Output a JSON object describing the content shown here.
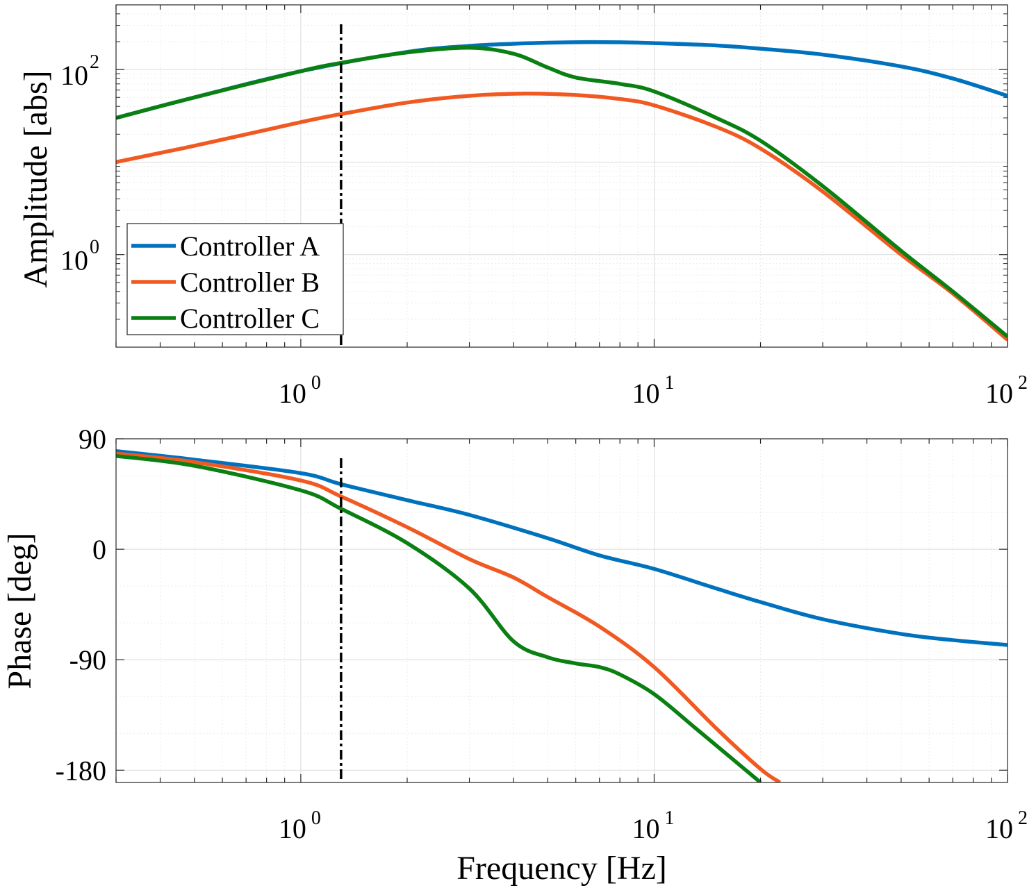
{
  "chart_data": [
    {
      "type": "line",
      "id": "amplitude",
      "xscale": "log",
      "yscale": "log",
      "xlim": [
        0.3,
        100
      ],
      "ylim": [
        0.1,
        500
      ],
      "ylabel": "Amplitude [abs]",
      "xticks": [
        {
          "v": 1,
          "label": "10",
          "exp": "0"
        },
        {
          "v": 10,
          "label": "10",
          "exp": "1"
        },
        {
          "v": 100,
          "label": "10",
          "exp": "2"
        }
      ],
      "yticks": [
        {
          "v": 1,
          "label": "10",
          "exp": "0"
        },
        {
          "v": 100,
          "label": "10",
          "exp": "2"
        }
      ],
      "vline_x": 1.3,
      "grid": true,
      "legend": {
        "position": "bottom-left"
      },
      "series": [
        {
          "name": "Controller A",
          "color": "#0072BD",
          "x": [
            0.3,
            0.5,
            1,
            2,
            3,
            4,
            5,
            6.5,
            8,
            10,
            15,
            20,
            30,
            50,
            70,
            100
          ],
          "y": [
            30,
            50,
            96,
            155,
            180,
            190,
            195,
            198,
            197,
            193,
            182,
            168,
            145,
            108,
            80,
            52
          ]
        },
        {
          "name": "Controller B",
          "color": "#F05A22",
          "x": [
            0.3,
            0.5,
            1,
            1.3,
            2,
            3,
            4.3,
            6,
            8,
            10,
            15,
            20,
            30,
            50,
            70,
            100
          ],
          "y": [
            10,
            15,
            27,
            33,
            44,
            52,
            55,
            53,
            48,
            41,
            24,
            14,
            4.8,
            1.0,
            0.38,
            0.12
          ]
        },
        {
          "name": "Controller C",
          "color": "#0A7F12",
          "x": [
            0.3,
            0.5,
            1,
            1.3,
            2,
            3,
            4,
            5,
            6,
            8,
            10,
            15,
            20,
            30,
            50,
            70,
            100
          ],
          "y": [
            30,
            50,
            96,
            118,
            153,
            172,
            148,
            105,
            82,
            70,
            58,
            30,
            17,
            5.5,
            1.1,
            0.4,
            0.13
          ]
        }
      ]
    },
    {
      "type": "line",
      "id": "phase",
      "xscale": "log",
      "yscale": "linear",
      "xlim": [
        0.3,
        100
      ],
      "ylim": [
        -190,
        90
      ],
      "xlabel": "Frequency [Hz]",
      "ylabel": "Phase [deg]",
      "xticks": [
        {
          "v": 1,
          "label": "10",
          "exp": "0"
        },
        {
          "v": 10,
          "label": "10",
          "exp": "1"
        },
        {
          "v": 100,
          "label": "10",
          "exp": "2"
        }
      ],
      "yticks": [
        {
          "v": 90,
          "label": "90"
        },
        {
          "v": 0,
          "label": "0"
        },
        {
          "v": -90,
          "label": "-90"
        },
        {
          "v": -180,
          "label": "-180"
        }
      ],
      "vline_x": 1.3,
      "grid": true,
      "series": [
        {
          "name": "Controller A",
          "color": "#0072BD",
          "x": [
            0.3,
            0.5,
            1,
            1.3,
            2,
            3,
            5,
            7,
            10,
            15,
            20,
            30,
            50,
            70,
            100
          ],
          "y": [
            80,
            73,
            62,
            53,
            40,
            28,
            9,
            -5,
            -16,
            -32,
            -43,
            -57,
            -69,
            -74,
            -78
          ]
        },
        {
          "name": "Controller B",
          "color": "#F05A22",
          "x": [
            0.3,
            0.5,
            1,
            1.3,
            2,
            3,
            4,
            5,
            7,
            10,
            15,
            20,
            22.7
          ],
          "y": [
            78,
            71,
            56,
            43,
            18,
            -8,
            -23,
            -39,
            -63,
            -96,
            -146,
            -179,
            -190
          ]
        },
        {
          "name": "Controller C",
          "color": "#0A7F12",
          "x": [
            0.3,
            0.5,
            1,
            1.3,
            2,
            3,
            4,
            5,
            6,
            7,
            8,
            10,
            13,
            17,
            20
          ],
          "y": [
            76,
            68,
            48,
            33,
            5,
            -32,
            -75,
            -88,
            -93,
            -96,
            -102,
            -118,
            -145,
            -173,
            -190
          ]
        }
      ]
    }
  ]
}
